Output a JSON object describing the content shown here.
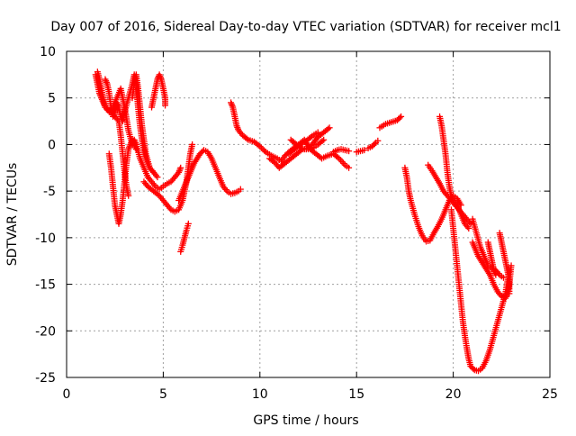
{
  "chart_data": {
    "type": "scatter",
    "title": "Day 007 of 2016, Sidereal Day-to-day VTEC variation (SDTVAR) for receiver mcl1",
    "xlabel": "GPS time / hours",
    "ylabel": "SDTVAR / TECUs",
    "xlim": [
      0,
      25
    ],
    "ylim": [
      -25,
      10
    ],
    "xticks": [
      0,
      5,
      10,
      15,
      20,
      25
    ],
    "yticks": [
      -25,
      -20,
      -15,
      -10,
      -5,
      0,
      5,
      10
    ],
    "grid": true,
    "marker": "+",
    "color": "#ff0000",
    "series": [
      {
        "values": [
          [
            1.5,
            7.5
          ],
          [
            1.6,
            6.5
          ],
          [
            1.7,
            5.5
          ],
          [
            1.8,
            5.0
          ],
          [
            1.9,
            4.5
          ],
          [
            2.0,
            4.0
          ],
          [
            2.1,
            3.8
          ],
          [
            2.3,
            3.5
          ],
          [
            2.5,
            3.0
          ],
          [
            2.7,
            2.5
          ],
          [
            2.8,
            1.0
          ],
          [
            2.9,
            -1.0
          ],
          [
            3.0,
            -3.0
          ],
          [
            3.1,
            -4.5
          ],
          [
            3.2,
            -5.5
          ]
        ]
      },
      {
        "values": [
          [
            1.6,
            7.8
          ],
          [
            1.7,
            7.0
          ],
          [
            1.8,
            6.0
          ],
          [
            1.9,
            5.0
          ],
          [
            2.0,
            4.0
          ],
          [
            2.2,
            3.5
          ],
          [
            2.4,
            4.0
          ],
          [
            2.6,
            5.0
          ],
          [
            2.8,
            6.0
          ],
          [
            3.0,
            4.0
          ],
          [
            3.2,
            1.5
          ],
          [
            3.4,
            0.0
          ],
          [
            3.5,
            0.5
          ],
          [
            3.6,
            0.0
          ],
          [
            3.8,
            -1.5
          ],
          [
            4.0,
            -2.5
          ],
          [
            4.2,
            -3.5
          ],
          [
            4.4,
            -4.0
          ],
          [
            4.6,
            -4.5
          ],
          [
            4.8,
            -4.8
          ],
          [
            5.0,
            -4.5
          ],
          [
            5.2,
            -4.2
          ],
          [
            5.4,
            -4.0
          ],
          [
            5.6,
            -3.5
          ],
          [
            5.8,
            -3.0
          ],
          [
            5.9,
            -2.5
          ]
        ]
      },
      {
        "values": [
          [
            2.0,
            7.0
          ],
          [
            2.1,
            6.5
          ],
          [
            2.2,
            5.5
          ],
          [
            2.3,
            4.0
          ],
          [
            2.4,
            3.0
          ],
          [
            2.5,
            3.5
          ],
          [
            2.6,
            4.5
          ],
          [
            2.7,
            4.0
          ],
          [
            2.8,
            3.0
          ],
          [
            2.9,
            2.5
          ],
          [
            3.0,
            3.5
          ],
          [
            3.2,
            5.0
          ],
          [
            3.4,
            6.5
          ],
          [
            3.5,
            7.5
          ],
          [
            3.6,
            6.5
          ],
          [
            3.7,
            4.0
          ],
          [
            3.8,
            2.0
          ],
          [
            3.9,
            0.5
          ],
          [
            4.0,
            -0.5
          ],
          [
            4.1,
            -1.5
          ],
          [
            4.3,
            -2.5
          ],
          [
            4.5,
            -3.0
          ],
          [
            4.7,
            -3.5
          ]
        ]
      },
      {
        "values": [
          [
            3.4,
            5.0
          ],
          [
            3.5,
            6.5
          ],
          [
            3.6,
            7.5
          ],
          [
            3.7,
            6.0
          ],
          [
            3.8,
            4.0
          ],
          [
            3.9,
            2.0
          ],
          [
            4.0,
            0.5
          ],
          [
            4.1,
            -1.0
          ],
          [
            4.3,
            -2.5
          ],
          [
            4.5,
            -3.0
          ]
        ]
      },
      {
        "values": [
          [
            2.2,
            -1.0
          ],
          [
            2.3,
            -2.5
          ],
          [
            2.4,
            -4.5
          ],
          [
            2.5,
            -6.5
          ],
          [
            2.6,
            -7.5
          ],
          [
            2.7,
            -8.5
          ],
          [
            2.8,
            -7.5
          ],
          [
            2.9,
            -6.0
          ],
          [
            3.0,
            -4.0
          ],
          [
            3.1,
            -2.0
          ],
          [
            3.2,
            -0.5
          ],
          [
            3.3,
            0.0
          ],
          [
            3.4,
            0.5
          ],
          [
            3.5,
            0.0
          ],
          [
            3.6,
            -0.5
          ]
        ]
      },
      {
        "values": [
          [
            4.4,
            4.0
          ],
          [
            4.5,
            5.0
          ],
          [
            4.6,
            6.0
          ],
          [
            4.7,
            7.0
          ],
          [
            4.8,
            7.5
          ],
          [
            4.9,
            7.0
          ],
          [
            5.0,
            6.0
          ],
          [
            5.1,
            5.0
          ],
          [
            5.1,
            4.2
          ]
        ]
      },
      {
        "values": [
          [
            4.0,
            -4.0
          ],
          [
            4.2,
            -4.5
          ],
          [
            4.5,
            -5.0
          ],
          [
            4.8,
            -5.5
          ],
          [
            5.0,
            -6.0
          ],
          [
            5.2,
            -6.5
          ],
          [
            5.4,
            -7.0
          ],
          [
            5.6,
            -7.2
          ],
          [
            5.8,
            -7.0
          ],
          [
            6.0,
            -6.0
          ],
          [
            6.1,
            -5.0
          ],
          [
            6.2,
            -4.0
          ],
          [
            6.3,
            -2.5
          ],
          [
            6.4,
            -1.0
          ],
          [
            6.5,
            0.0
          ]
        ]
      },
      {
        "values": [
          [
            5.9,
            -11.5
          ],
          [
            6.0,
            -10.8
          ],
          [
            6.1,
            -10.0
          ],
          [
            6.2,
            -9.2
          ],
          [
            6.3,
            -8.5
          ]
        ]
      },
      {
        "values": [
          [
            5.8,
            -6.0
          ],
          [
            6.0,
            -5.0
          ],
          [
            6.3,
            -3.5
          ],
          [
            6.6,
            -2.0
          ],
          [
            6.9,
            -1.0
          ],
          [
            7.1,
            -0.6
          ],
          [
            7.3,
            -0.8
          ],
          [
            7.5,
            -1.5
          ],
          [
            7.7,
            -2.5
          ],
          [
            7.9,
            -3.5
          ],
          [
            8.1,
            -4.5
          ],
          [
            8.3,
            -5.0
          ],
          [
            8.5,
            -5.3
          ],
          [
            8.7,
            -5.2
          ],
          [
            8.9,
            -5.0
          ],
          [
            9.0,
            -4.8
          ]
        ]
      },
      {
        "values": [
          [
            8.5,
            4.5
          ],
          [
            8.6,
            4.0
          ],
          [
            8.7,
            3.0
          ],
          [
            8.8,
            2.0
          ],
          [
            8.9,
            1.5
          ],
          [
            9.1,
            1.0
          ],
          [
            9.4,
            0.5
          ],
          [
            9.7,
            0.3
          ],
          [
            10.0,
            -0.2
          ],
          [
            10.3,
            -0.8
          ],
          [
            10.6,
            -1.2
          ],
          [
            10.9,
            -1.5
          ],
          [
            11.1,
            -1.8
          ],
          [
            11.3,
            -1.2
          ],
          [
            11.5,
            -0.8
          ],
          [
            11.8,
            -0.3
          ],
          [
            12.0,
            0.0
          ],
          [
            12.3,
            0.5
          ],
          [
            12.6,
            -0.5
          ],
          [
            12.9,
            -1.0
          ],
          [
            13.2,
            -1.5
          ],
          [
            13.5,
            -1.2
          ],
          [
            13.8,
            -1.0
          ],
          [
            14.1,
            -1.5
          ],
          [
            14.4,
            -2.2
          ],
          [
            14.6,
            -2.5
          ]
        ]
      },
      {
        "values": [
          [
            10.5,
            -1.5
          ],
          [
            10.8,
            -2.0
          ],
          [
            11.0,
            -2.5
          ],
          [
            11.3,
            -2.0
          ],
          [
            11.6,
            -1.5
          ],
          [
            11.9,
            -1.0
          ],
          [
            12.2,
            -0.5
          ],
          [
            12.4,
            -0.5
          ],
          [
            12.7,
            0.0
          ],
          [
            13.0,
            0.8
          ],
          [
            13.3,
            1.3
          ],
          [
            13.6,
            1.8
          ]
        ]
      },
      {
        "values": [
          [
            11.6,
            0.5
          ],
          [
            11.9,
            0.0
          ],
          [
            12.2,
            -0.5
          ],
          [
            12.5,
            -0.5
          ],
          [
            12.8,
            -0.3
          ],
          [
            13.0,
            0.0
          ],
          [
            13.3,
            0.5
          ]
        ]
      },
      {
        "values": [
          [
            11.5,
            -1.0
          ],
          [
            11.8,
            -0.5
          ],
          [
            12.1,
            0.0
          ],
          [
            12.4,
            0.4
          ],
          [
            12.7,
            0.9
          ],
          [
            13.0,
            1.3
          ]
        ]
      },
      {
        "values": [
          [
            13.8,
            -0.8
          ],
          [
            14.0,
            -0.6
          ],
          [
            14.2,
            -0.5
          ],
          [
            14.4,
            -0.6
          ],
          [
            14.6,
            -0.7
          ]
        ]
      },
      {
        "values": [
          [
            15.0,
            -0.8
          ],
          [
            15.2,
            -0.7
          ],
          [
            15.4,
            -0.6
          ]
        ]
      },
      {
        "values": [
          [
            15.6,
            -0.4
          ],
          [
            15.8,
            -0.2
          ],
          [
            16.0,
            0.2
          ],
          [
            16.1,
            0.4
          ]
        ]
      },
      {
        "values": [
          [
            16.2,
            1.8
          ],
          [
            16.5,
            2.2
          ],
          [
            16.8,
            2.4
          ],
          [
            17.1,
            2.6
          ],
          [
            17.3,
            3.0
          ]
        ]
      },
      {
        "values": [
          [
            17.5,
            -2.5
          ],
          [
            17.6,
            -3.5
          ],
          [
            17.7,
            -5.0
          ],
          [
            17.8,
            -6.0
          ],
          [
            18.0,
            -7.5
          ],
          [
            18.2,
            -8.8
          ],
          [
            18.4,
            -9.8
          ],
          [
            18.6,
            -10.4
          ],
          [
            18.8,
            -10.3
          ],
          [
            19.0,
            -9.5
          ],
          [
            19.2,
            -8.8
          ],
          [
            19.4,
            -8.0
          ],
          [
            19.6,
            -7.0
          ],
          [
            19.8,
            -6.0
          ],
          [
            20.0,
            -5.5
          ],
          [
            20.2,
            -5.8
          ],
          [
            20.4,
            -6.5
          ]
        ]
      },
      {
        "values": [
          [
            18.7,
            -2.2
          ],
          [
            18.9,
            -2.8
          ],
          [
            19.1,
            -3.5
          ],
          [
            19.3,
            -4.2
          ],
          [
            19.5,
            -5.0
          ],
          [
            19.7,
            -5.5
          ],
          [
            19.9,
            -6.0
          ],
          [
            20.1,
            -6.5
          ],
          [
            20.3,
            -7.0
          ],
          [
            20.5,
            -7.5
          ],
          [
            20.7,
            -8.0
          ],
          [
            20.9,
            -8.5
          ]
        ]
      },
      {
        "values": [
          [
            19.3,
            3.0
          ],
          [
            19.4,
            2.0
          ],
          [
            19.5,
            0.5
          ],
          [
            19.6,
            -1.0
          ],
          [
            19.7,
            -3.0
          ],
          [
            19.8,
            -4.5
          ],
          [
            19.9,
            -5.5
          ],
          [
            20.0,
            -6.0
          ],
          [
            20.2,
            -6.5
          ],
          [
            20.4,
            -7.5
          ],
          [
            20.6,
            -8.5
          ],
          [
            20.8,
            -9.0
          ]
        ]
      },
      {
        "values": [
          [
            19.9,
            -7.0
          ],
          [
            20.0,
            -9.0
          ],
          [
            20.1,
            -11.0
          ],
          [
            20.2,
            -13.0
          ],
          [
            20.3,
            -15.0
          ],
          [
            20.4,
            -17.0
          ],
          [
            20.5,
            -19.0
          ],
          [
            20.6,
            -20.5
          ],
          [
            20.7,
            -21.8
          ],
          [
            20.8,
            -23.0
          ],
          [
            20.9,
            -23.8
          ],
          [
            21.1,
            -24.2
          ],
          [
            21.3,
            -24.3
          ],
          [
            21.5,
            -24.0
          ],
          [
            21.7,
            -23.2
          ],
          [
            21.9,
            -22.0
          ],
          [
            22.1,
            -20.5
          ],
          [
            22.3,
            -19.0
          ],
          [
            22.5,
            -17.5
          ],
          [
            22.7,
            -16.0
          ],
          [
            22.9,
            -13.5
          ]
        ]
      },
      {
        "values": [
          [
            21.0,
            -8.0
          ],
          [
            21.2,
            -9.5
          ],
          [
            21.4,
            -11.0
          ],
          [
            21.6,
            -12.0
          ],
          [
            21.8,
            -13.0
          ],
          [
            22.0,
            -13.3
          ],
          [
            22.2,
            -13.5
          ],
          [
            22.4,
            -14.0
          ],
          [
            22.6,
            -14.3
          ]
        ]
      },
      {
        "values": [
          [
            21.0,
            -10.5
          ],
          [
            21.3,
            -12.0
          ],
          [
            21.6,
            -13.0
          ],
          [
            21.9,
            -14.0
          ],
          [
            22.1,
            -15.0
          ],
          [
            22.3,
            -15.8
          ],
          [
            22.5,
            -16.3
          ],
          [
            22.7,
            -16.5
          ],
          [
            22.8,
            -16.0
          ],
          [
            22.9,
            -15.0
          ],
          [
            23.0,
            -13.0
          ]
        ]
      },
      {
        "values": [
          [
            21.8,
            -10.5
          ],
          [
            21.9,
            -11.5
          ],
          [
            22.0,
            -12.5
          ],
          [
            22.1,
            -13.5
          ],
          [
            22.2,
            -14.0
          ]
        ]
      },
      {
        "values": [
          [
            22.4,
            -9.5
          ],
          [
            22.5,
            -10.5
          ],
          [
            22.6,
            -11.5
          ],
          [
            22.7,
            -12.5
          ],
          [
            22.8,
            -13.5
          ],
          [
            22.9,
            -14.5
          ],
          [
            22.9,
            -15.5
          ],
          [
            22.9,
            -16.0
          ]
        ]
      }
    ]
  }
}
